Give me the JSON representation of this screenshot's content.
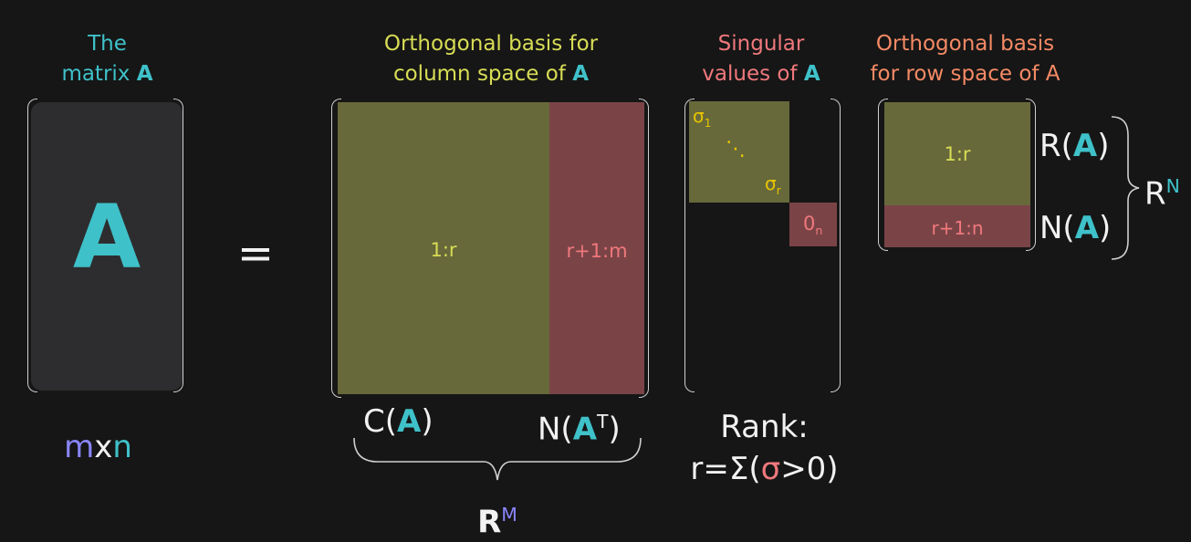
{
  "labels": {
    "matrix_line1": "The",
    "matrix_line2": "matrix",
    "matrix_A": "A",
    "big_A": "A",
    "equals": "=",
    "dims_m": "m",
    "dims_x": "x",
    "dims_n": "n",
    "u_title_line1": "Orthogonal basis for",
    "u_title_line2": "column space of",
    "u_title_A": "A",
    "u_block1": "1:r",
    "u_block2": "r+1:m",
    "u_C": "C(",
    "u_C_A": "A",
    "u_C_close": ")",
    "u_N": "N(",
    "u_N_A": "A",
    "u_N_T": "T",
    "u_N_close": ")",
    "u_space": "R",
    "u_space_sup": "M",
    "s_title_line1": "Singular",
    "s_title_line2": "values of",
    "s_title_A": "A",
    "s_sigma1": "σ",
    "s_sigma1_sub": "1",
    "s_dots": "⋱",
    "s_sigmar": "σ",
    "s_sigmar_sub": "r",
    "s_zero": "0",
    "s_zero_sub": "n",
    "rank_line1": "Rank:",
    "rank_prefix": "r=Σ(",
    "rank_sigma": "σ",
    "rank_suffix": ">0)",
    "v_title_line1": "Orthogonal basis",
    "v_title_line2": "for row space of A",
    "v_block1": "1:r",
    "v_block2": "r+1:n",
    "v_R": "R(",
    "v_R_A": "A",
    "v_R_close": ")",
    "v_N": "N(",
    "v_N_A": "A",
    "v_N_close": ")",
    "v_space": "R",
    "v_space_sup": "N"
  },
  "colors": {
    "background": "#161616",
    "cyan": "#3fc1c9",
    "yellow": "#d8dd55",
    "pink": "#f0787c",
    "orange": "#f58a65",
    "green_block": "#67693a",
    "red_block": "#7a4447",
    "purple": "#8a86ff"
  }
}
